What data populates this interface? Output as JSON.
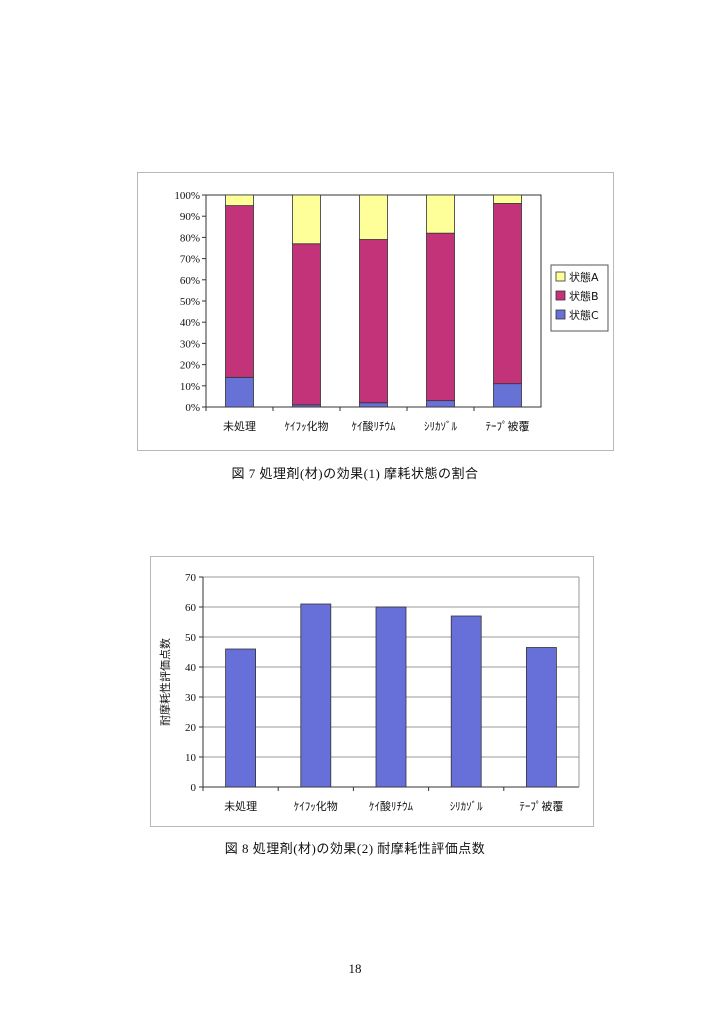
{
  "colors": {
    "stateA": "#ffff99",
    "stateB": "#c2337a",
    "stateC": "#6672d6",
    "bar": "#6670d8",
    "grid": "#9a9a9a",
    "axis": "#333333"
  },
  "figure7": {
    "caption": "図 7 処理剤(材)の効果(1) 摩耗状態の割合"
  },
  "figure8": {
    "caption": "図 8 処理剤(材)の効果(2) 耐摩耗性評価点数"
  },
  "page_number": "18",
  "chart_data": [
    {
      "type": "bar",
      "stacked": true,
      "categories": [
        "未処理",
        "ｹｲﾌｯ化物",
        "ｹｲ酸ﾘﾁｳﾑ",
        "ｼﾘｶｿﾞﾙ",
        "ﾃｰﾌﾟ被覆"
      ],
      "series": [
        {
          "name": "状態C",
          "values": [
            14,
            1,
            2,
            3,
            11
          ]
        },
        {
          "name": "状態B",
          "values": [
            81,
            76,
            77,
            79,
            85
          ]
        },
        {
          "name": "状態A",
          "values": [
            5,
            23,
            21,
            18,
            4
          ]
        }
      ],
      "yticks": [
        "0%",
        "10%",
        "20%",
        "30%",
        "40%",
        "50%",
        "60%",
        "70%",
        "80%",
        "90%",
        "100%"
      ],
      "ylim": [
        0,
        100
      ],
      "legend": [
        "状態A",
        "状態B",
        "状態C"
      ],
      "legend_position": "right",
      "grid": false
    },
    {
      "type": "bar",
      "categories": [
        "未処理",
        "ｹｲﾌｯ化物",
        "ｹｲ酸ﾘﾁｳﾑ",
        "ｼﾘｶｿﾞﾙ",
        "ﾃｰﾌﾟ被覆"
      ],
      "values": [
        46,
        61,
        60,
        57,
        46.5
      ],
      "ylabel": "耐摩耗性評価点数",
      "yticks": [
        "0",
        "10",
        "20",
        "30",
        "40",
        "50",
        "60",
        "70"
      ],
      "ylim": [
        0,
        70
      ],
      "grid": true
    }
  ]
}
